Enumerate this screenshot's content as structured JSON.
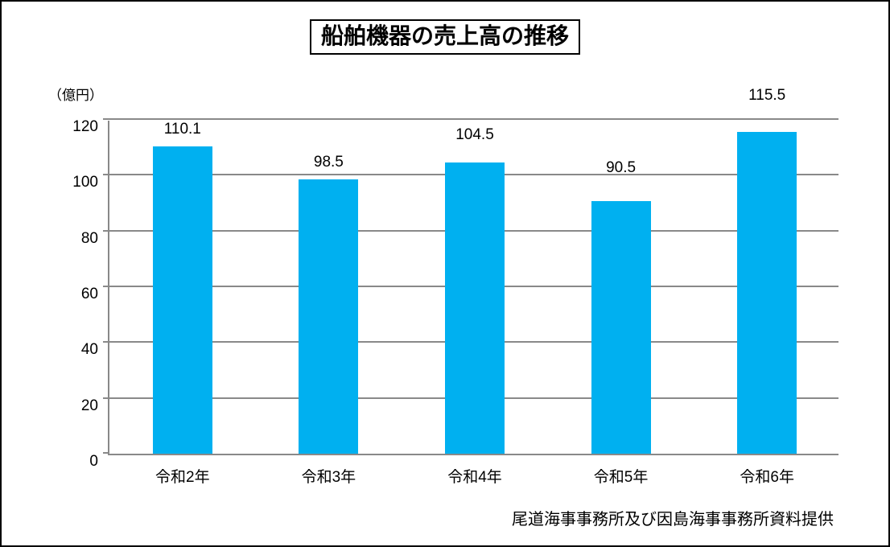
{
  "title": "船舶機器の売上高の推移",
  "unit_label": "（億円）",
  "source_note": "尾道海事事務所及び因島海事事務所資料提供",
  "colors": {
    "bar": "#00B0F0",
    "gridline": "#898989",
    "text": "#000000",
    "frame_border": "#000000",
    "background": "#FFFFFF"
  },
  "chart_data": {
    "type": "bar",
    "categories": [
      "令和2年",
      "令和3年",
      "令和4年",
      "令和5年",
      "令和6年"
    ],
    "values": [
      110.1,
      98.5,
      104.5,
      90.5,
      115.5
    ],
    "title": "船舶機器の売上高の推移",
    "xlabel": "",
    "ylabel": "（億円）",
    "ylim": [
      0,
      120
    ],
    "ytick_step": 20,
    "yticks": [
      0,
      20,
      40,
      60,
      80,
      100,
      120
    ],
    "grid": true,
    "legend": false,
    "data_labels": [
      "110.1",
      "98.5",
      "104.5",
      "90.5",
      "115.5"
    ],
    "source": "尾道海事事務所及び因島海事事務所資料提供"
  }
}
